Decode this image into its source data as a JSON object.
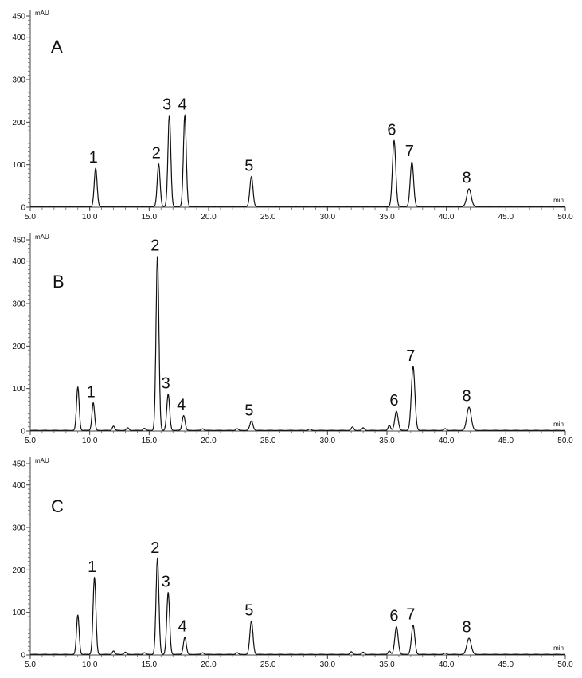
{
  "chart_data": [
    {
      "type": "line",
      "panel_label": "A",
      "ylabel": "mAU",
      "xlabel": "min",
      "xlim": [
        5.0,
        50.0
      ],
      "ylim": [
        0,
        450
      ],
      "x_ticks": [
        "5.0",
        "10.0",
        "15.0",
        "20.0",
        "25.0",
        "30.0",
        "35.0",
        "40.0",
        "45.0",
        "50.0"
      ],
      "y_ticks": [
        "0",
        "100",
        "200",
        "300",
        "400",
        "450"
      ],
      "grid": false,
      "peaks": [
        {
          "label": "1",
          "rt": 10.5,
          "height": 90,
          "width": 0.12
        },
        {
          "label": "2",
          "rt": 15.8,
          "height": 100,
          "width": 0.12
        },
        {
          "label": "3",
          "rt": 16.7,
          "height": 215,
          "width": 0.12
        },
        {
          "label": "4",
          "rt": 18.0,
          "height": 215,
          "width": 0.12
        },
        {
          "label": "5",
          "rt": 23.6,
          "height": 70,
          "width": 0.13
        },
        {
          "label": "6",
          "rt": 35.6,
          "height": 155,
          "width": 0.14
        },
        {
          "label": "7",
          "rt": 37.1,
          "height": 105,
          "width": 0.14
        },
        {
          "label": "8",
          "rt": 41.9,
          "height": 42,
          "width": 0.18
        }
      ],
      "minor_peaks": []
    },
    {
      "type": "line",
      "panel_label": "B",
      "ylabel": "mAU",
      "xlabel": "min",
      "xlim": [
        5.0,
        50.0
      ],
      "ylim": [
        0,
        450
      ],
      "x_ticks": [
        "5.0",
        "10.0",
        "15.0",
        "20.0",
        "25.0",
        "30.0",
        "35.0",
        "40.0",
        "45.0",
        "50.0"
      ],
      "y_ticks": [
        "0",
        "100",
        "200",
        "300",
        "400",
        "450"
      ],
      "grid": false,
      "peaks": [
        {
          "label": "1",
          "rt": 10.3,
          "height": 65,
          "width": 0.11
        },
        {
          "label": "2",
          "rt": 15.7,
          "height": 410,
          "width": 0.12
        },
        {
          "label": "3",
          "rt": 16.6,
          "height": 85,
          "width": 0.12
        },
        {
          "label": "4",
          "rt": 17.9,
          "height": 35,
          "width": 0.12
        },
        {
          "label": "5",
          "rt": 23.6,
          "height": 22,
          "width": 0.13
        },
        {
          "label": "6",
          "rt": 35.8,
          "height": 45,
          "width": 0.14
        },
        {
          "label": "7",
          "rt": 37.2,
          "height": 150,
          "width": 0.15
        },
        {
          "label": "8",
          "rt": 41.9,
          "height": 55,
          "width": 0.18
        }
      ],
      "minor_peaks": [
        {
          "rt": 9.0,
          "height": 102,
          "width": 0.11
        },
        {
          "rt": 12.0,
          "height": 10,
          "width": 0.1
        },
        {
          "rt": 13.2,
          "height": 6,
          "width": 0.1
        },
        {
          "rt": 14.6,
          "height": 5,
          "width": 0.1
        },
        {
          "rt": 19.5,
          "height": 4,
          "width": 0.1
        },
        {
          "rt": 22.4,
          "height": 4,
          "width": 0.1
        },
        {
          "rt": 28.5,
          "height": 3,
          "width": 0.1
        },
        {
          "rt": 32.1,
          "height": 8,
          "width": 0.1
        },
        {
          "rt": 33.0,
          "height": 6,
          "width": 0.1
        },
        {
          "rt": 35.2,
          "height": 12,
          "width": 0.1
        },
        {
          "rt": 39.9,
          "height": 4,
          "width": 0.1
        }
      ]
    },
    {
      "type": "line",
      "panel_label": "C",
      "ylabel": "mAU",
      "xlabel": "min",
      "xlim": [
        5.0,
        50.0
      ],
      "ylim": [
        0,
        450
      ],
      "x_ticks": [
        "5.0",
        "10.0",
        "15.0",
        "20.0",
        "25.0",
        "30.0",
        "35.0",
        "40.0",
        "45.0",
        "50.0"
      ],
      "y_ticks": [
        "0",
        "100",
        "200",
        "300",
        "400",
        "450"
      ],
      "grid": false,
      "peaks": [
        {
          "label": "1",
          "rt": 10.4,
          "height": 180,
          "width": 0.12
        },
        {
          "label": "2",
          "rt": 15.7,
          "height": 225,
          "width": 0.12
        },
        {
          "label": "3",
          "rt": 16.6,
          "height": 145,
          "width": 0.12
        },
        {
          "label": "4",
          "rt": 18.0,
          "height": 40,
          "width": 0.12
        },
        {
          "label": "5",
          "rt": 23.6,
          "height": 78,
          "width": 0.13
        },
        {
          "label": "6",
          "rt": 35.8,
          "height": 65,
          "width": 0.14
        },
        {
          "label": "7",
          "rt": 37.2,
          "height": 68,
          "width": 0.14
        },
        {
          "label": "8",
          "rt": 41.9,
          "height": 38,
          "width": 0.18
        }
      ],
      "minor_peaks": [
        {
          "rt": 9.0,
          "height": 92,
          "width": 0.11
        },
        {
          "rt": 12.0,
          "height": 8,
          "width": 0.1
        },
        {
          "rt": 13.0,
          "height": 5,
          "width": 0.1
        },
        {
          "rt": 14.6,
          "height": 4,
          "width": 0.1
        },
        {
          "rt": 19.5,
          "height": 4,
          "width": 0.1
        },
        {
          "rt": 22.4,
          "height": 4,
          "width": 0.1
        },
        {
          "rt": 32.0,
          "height": 6,
          "width": 0.1
        },
        {
          "rt": 33.0,
          "height": 5,
          "width": 0.1
        },
        {
          "rt": 35.2,
          "height": 8,
          "width": 0.1
        },
        {
          "rt": 39.9,
          "height": 3,
          "width": 0.1
        }
      ]
    }
  ]
}
